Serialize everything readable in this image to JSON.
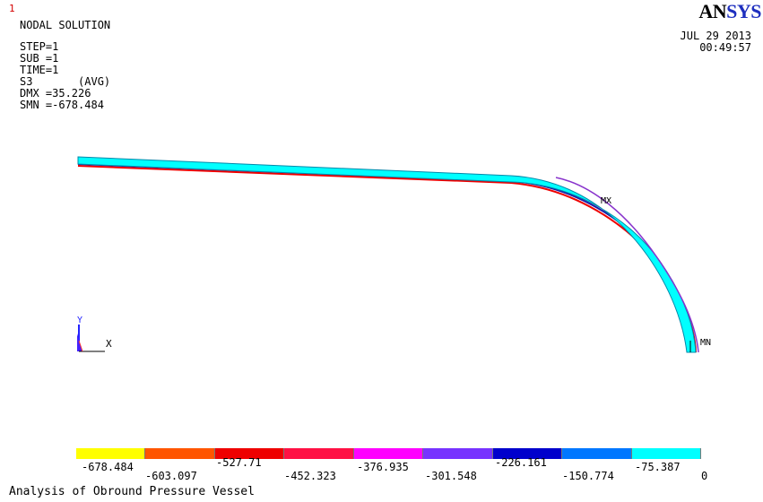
{
  "window_number": "1",
  "logo": {
    "text_a": "AN",
    "text_b": "SYS"
  },
  "info": {
    "title": "NODAL SOLUTION",
    "step": "STEP=1",
    "sub": "SUB =1",
    "time": "TIME=1",
    "stress": "S3       (AVG)",
    "dmx": "DMX =35.226",
    "smn": "SMN =-678.484"
  },
  "datetime": {
    "date": "JUL 29 2013",
    "time": "00:49:57"
  },
  "markers": {
    "mx": "MX",
    "mn": "MN"
  },
  "triad": {
    "y": "Y",
    "x": "X"
  },
  "legend": {
    "colors": [
      "#ffff00",
      "#ff5500",
      "#ee0000",
      "#ff1144",
      "#ff00ff",
      "#7733ff",
      "#0000cc",
      "#0077ff",
      "#00ffff"
    ],
    "top_labels": [
      "-678.484",
      "-527.71",
      "-376.935",
      "-226.161",
      "-75.387"
    ],
    "bottom_labels": [
      "-603.097",
      "-452.323",
      "-301.548",
      "-150.774",
      "0"
    ]
  },
  "footer": "Analysis of Obround Pressure Vessel"
}
